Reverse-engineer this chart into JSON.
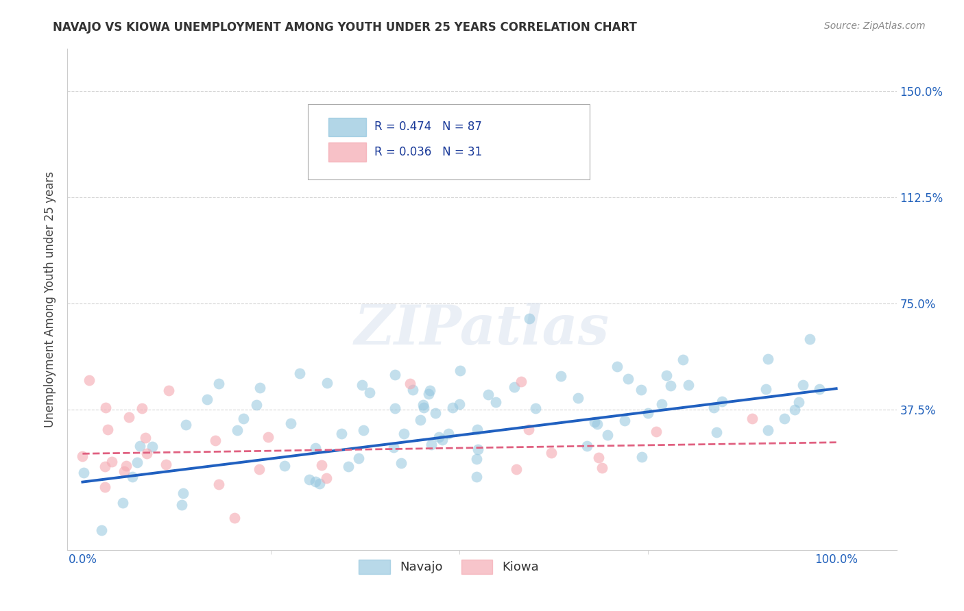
{
  "title": "NAVAJO VS KIOWA UNEMPLOYMENT AMONG YOUTH UNDER 25 YEARS CORRELATION CHART",
  "source": "Source: ZipAtlas.com",
  "ylabel": "Unemployment Among Youth under 25 years",
  "xtick_labels": [
    "0.0%",
    "100.0%"
  ],
  "xtick_positions": [
    0.0,
    1.0
  ],
  "ytick_labels": [
    "37.5%",
    "75.0%",
    "112.5%",
    "150.0%"
  ],
  "ytick_positions": [
    0.375,
    0.75,
    1.125,
    1.5
  ],
  "navajo_R": "0.474",
  "navajo_N": "87",
  "kiowa_R": "0.036",
  "kiowa_N": "31",
  "navajo_color": "#92c5de",
  "kiowa_color": "#f4a7b0",
  "navajo_line_color": "#2060c0",
  "kiowa_line_color": "#e06080",
  "background_color": "#ffffff",
  "grid_color": "#cccccc",
  "watermark": "ZIPatlas",
  "legend_navajo": "Navajo",
  "legend_kiowa": "Kiowa",
  "xlim": [
    -0.02,
    1.08
  ],
  "ylim": [
    -0.12,
    1.65
  ]
}
